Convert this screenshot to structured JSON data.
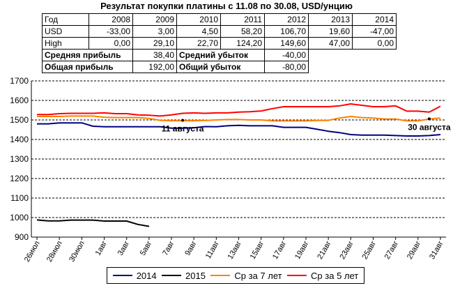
{
  "title": "Результат покупки платины с 11.08 по 30.08, USD/унцию",
  "table": {
    "header": {
      "label": "Год",
      "values": [
        "2008",
        "2009",
        "2010",
        "2011",
        "2012",
        "2013",
        "2014"
      ]
    },
    "usd": {
      "label": "USD",
      "values": [
        "-33,00",
        "3,00",
        "4,50",
        "58,20",
        "106,70",
        "19,60",
        "-47,00"
      ]
    },
    "high": {
      "label": "High",
      "values": [
        "0,00",
        "29,10",
        "22,70",
        "124,20",
        "149,60",
        "47,00",
        "0,00"
      ]
    },
    "avg_profit": {
      "label": "Средняя прибыль",
      "value": "38,40"
    },
    "avg_loss": {
      "label": "Средний убыток",
      "value": "-40,00"
    },
    "total_profit": {
      "label": "Общая прибыль",
      "value": "192,00"
    },
    "total_loss": {
      "label": "Общий убыток",
      "value": "-80,00"
    }
  },
  "colors": {
    "s2014": "#000080",
    "s2015": "#000000",
    "s7": "#ff8000",
    "s5": "#ff0000",
    "grid": "#000000"
  },
  "chart_data": {
    "type": "line",
    "ylim": [
      900,
      1700
    ],
    "yticks": [
      900,
      1000,
      1100,
      1200,
      1300,
      1400,
      1500,
      1600,
      1700
    ],
    "xlabels": [
      "26июл",
      "28июл",
      "30июл",
      "1авг",
      "3авг",
      "5авг",
      "7авг",
      "9авг",
      "11авг",
      "13авг",
      "15авг",
      "17авг",
      "19авг",
      "21авг",
      "23авг",
      "25авг",
      "27авг",
      "29авг",
      "31авг"
    ],
    "x_count": 37,
    "series": [
      {
        "name": "2014",
        "color_key": "s2014",
        "values": [
          1480,
          1480,
          1485,
          1485,
          1485,
          1468,
          1465,
          1465,
          1465,
          1465,
          1465,
          1465,
          1458,
          1458,
          1460,
          1466,
          1465,
          1470,
          1472,
          1470,
          1470,
          1470,
          1462,
          1462,
          1462,
          1452,
          1442,
          1435,
          1425,
          1422,
          1422,
          1422,
          1420,
          1418,
          1418,
          1420,
          1425
        ]
      },
      {
        "name": "2015",
        "color_key": "s2015",
        "values": [
          988,
          983,
          983,
          987,
          987,
          987,
          982,
          982,
          982,
          965,
          955
        ]
      },
      {
        "name": "Ср за 7 лет",
        "color_key": "s7",
        "values": [
          1518,
          1518,
          1518,
          1520,
          1520,
          1520,
          1514,
          1512,
          1512,
          1512,
          1508,
          1498,
          1496,
          1496,
          1496,
          1497,
          1500,
          1502,
          1502,
          1500,
          1500,
          1495,
          1495,
          1495,
          1495,
          1497,
          1498,
          1510,
          1518,
          1512,
          1510,
          1505,
          1505,
          1495,
          1495,
          1505,
          1510
        ]
      },
      {
        "name": "Ср за 5 лет",
        "color_key": "s5",
        "values": [
          1528,
          1528,
          1532,
          1534,
          1534,
          1534,
          1536,
          1532,
          1532,
          1526,
          1524,
          1520,
          1526,
          1534,
          1536,
          1534,
          1536,
          1536,
          1540,
          1542,
          1546,
          1558,
          1568,
          1568,
          1568,
          1568,
          1568,
          1572,
          1582,
          1575,
          1568,
          1568,
          1572,
          1545,
          1545,
          1540,
          1570
        ]
      }
    ],
    "annotations": [
      {
        "text": "11 августа",
        "x_index": 13,
        "y": 1498
      },
      {
        "text": "30 августа",
        "x_index": 35,
        "y": 1506
      }
    ],
    "legend_position": "bottom",
    "grid": true
  }
}
